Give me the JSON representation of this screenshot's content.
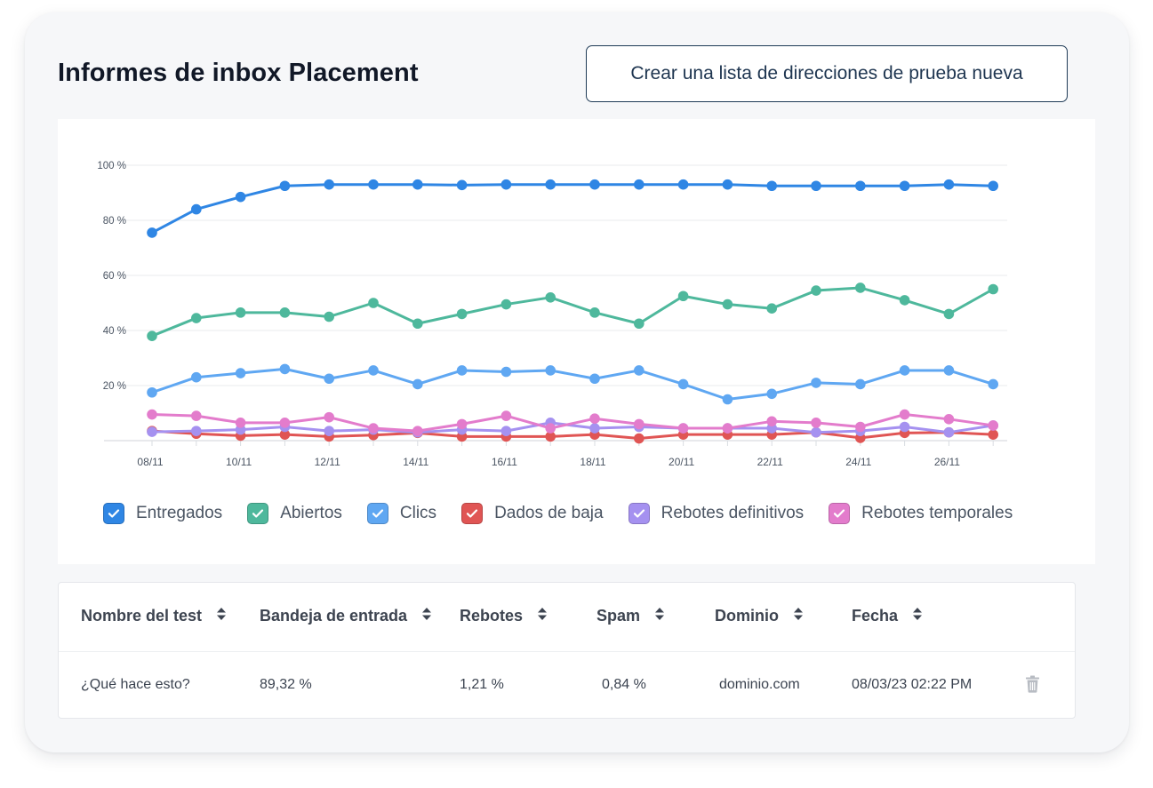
{
  "header": {
    "title": "Informes de inbox Placement",
    "cta_label": "Crear una lista de direcciones de prueba nueva"
  },
  "chart_data": {
    "type": "line",
    "x": [
      "08/11",
      "09/11",
      "10/11",
      "11/11",
      "12/11",
      "13/11",
      "14/11",
      "15/11",
      "16/11",
      "17/11",
      "18/11",
      "19/11",
      "20/11",
      "21/11",
      "22/11",
      "23/11",
      "24/11",
      "25/11",
      "26/11",
      "27/11"
    ],
    "x_tick_labels": [
      "08/11",
      "10/11",
      "12/11",
      "14/11",
      "16/11",
      "18/11",
      "20/11",
      "22/11",
      "24/11",
      "26/11"
    ],
    "y_tick_labels": [
      "100 %",
      "80 %",
      "60 %",
      "40 %",
      "20 %"
    ],
    "y_ticks": [
      100,
      80,
      60,
      40,
      20
    ],
    "ylim": [
      0,
      100
    ],
    "grid": true,
    "series": [
      {
        "name": "Entregados",
        "color": "#2f86e4",
        "values": [
          75.5,
          84,
          88.5,
          92.5,
          93,
          93,
          93,
          92.8,
          93,
          93,
          93,
          93,
          93,
          93,
          92.5,
          92.5,
          92.5,
          92.5,
          93,
          92.5
        ]
      },
      {
        "name": "Abiertos",
        "color": "#4eb89c",
        "values": [
          38,
          44.5,
          46.5,
          46.5,
          45,
          50,
          42.5,
          46,
          49.5,
          52,
          46.5,
          42.5,
          52.5,
          49.5,
          48,
          54.5,
          55.5,
          51,
          46,
          55
        ]
      },
      {
        "name": "Clics",
        "color": "#5fa7f2",
        "values": [
          17.5,
          23,
          24.5,
          26,
          22.5,
          25.5,
          20.5,
          25.5,
          25,
          25.5,
          22.5,
          25.5,
          20.5,
          15,
          17,
          21,
          20.5,
          25.5,
          25.5,
          20.5
        ]
      },
      {
        "name": "Dados de baja",
        "color": "#e05554",
        "values": [
          3.5,
          2.5,
          1.8,
          2.2,
          1.5,
          2,
          2.8,
          1.5,
          1.5,
          1.5,
          2.2,
          0.8,
          2.2,
          2.2,
          2.2,
          3,
          1,
          2.8,
          3,
          2.2
        ]
      },
      {
        "name": "Rebotes definitivos",
        "color": "#a591f0",
        "values": [
          3.2,
          3.5,
          4,
          5,
          3.5,
          4,
          3,
          4,
          3.5,
          6.5,
          4.5,
          5,
          4.5,
          4.5,
          4.5,
          3,
          3.5,
          5,
          3,
          5.5
        ]
      },
      {
        "name": "Rebotes temporales",
        "color": "#e37ccc",
        "values": [
          9.5,
          9,
          6.5,
          6.5,
          8.5,
          4.5,
          3.5,
          6,
          9,
          4.5,
          8,
          6,
          4.5,
          4.5,
          7,
          6.5,
          5,
          9.5,
          7.8,
          5.5
        ]
      }
    ]
  },
  "legend": [
    {
      "label": "Entregados",
      "color": "#2f86e4",
      "checked": true
    },
    {
      "label": "Abiertos",
      "color": "#4eb89c",
      "checked": true
    },
    {
      "label": "Clics",
      "color": "#5fa7f2",
      "checked": true
    },
    {
      "label": "Dados de baja",
      "color": "#e05554",
      "checked": true
    },
    {
      "label": "Rebotes definitivos",
      "color": "#a591f0",
      "checked": true
    },
    {
      "label": "Rebotes temporales",
      "color": "#e37ccc",
      "checked": true
    }
  ],
  "table": {
    "columns": [
      "Nombre del test",
      "Bandeja de entrada",
      "Rebotes",
      "Spam",
      "Dominio",
      "Fecha"
    ],
    "rows": [
      {
        "name": "¿Qué hace esto?",
        "inbox": "89,32 %",
        "bounces": "1,21 %",
        "spam": "0,84 %",
        "domain": "dominio.com",
        "date": "08/03/23 02:22 PM",
        "action_icon": "trash-icon"
      }
    ]
  }
}
